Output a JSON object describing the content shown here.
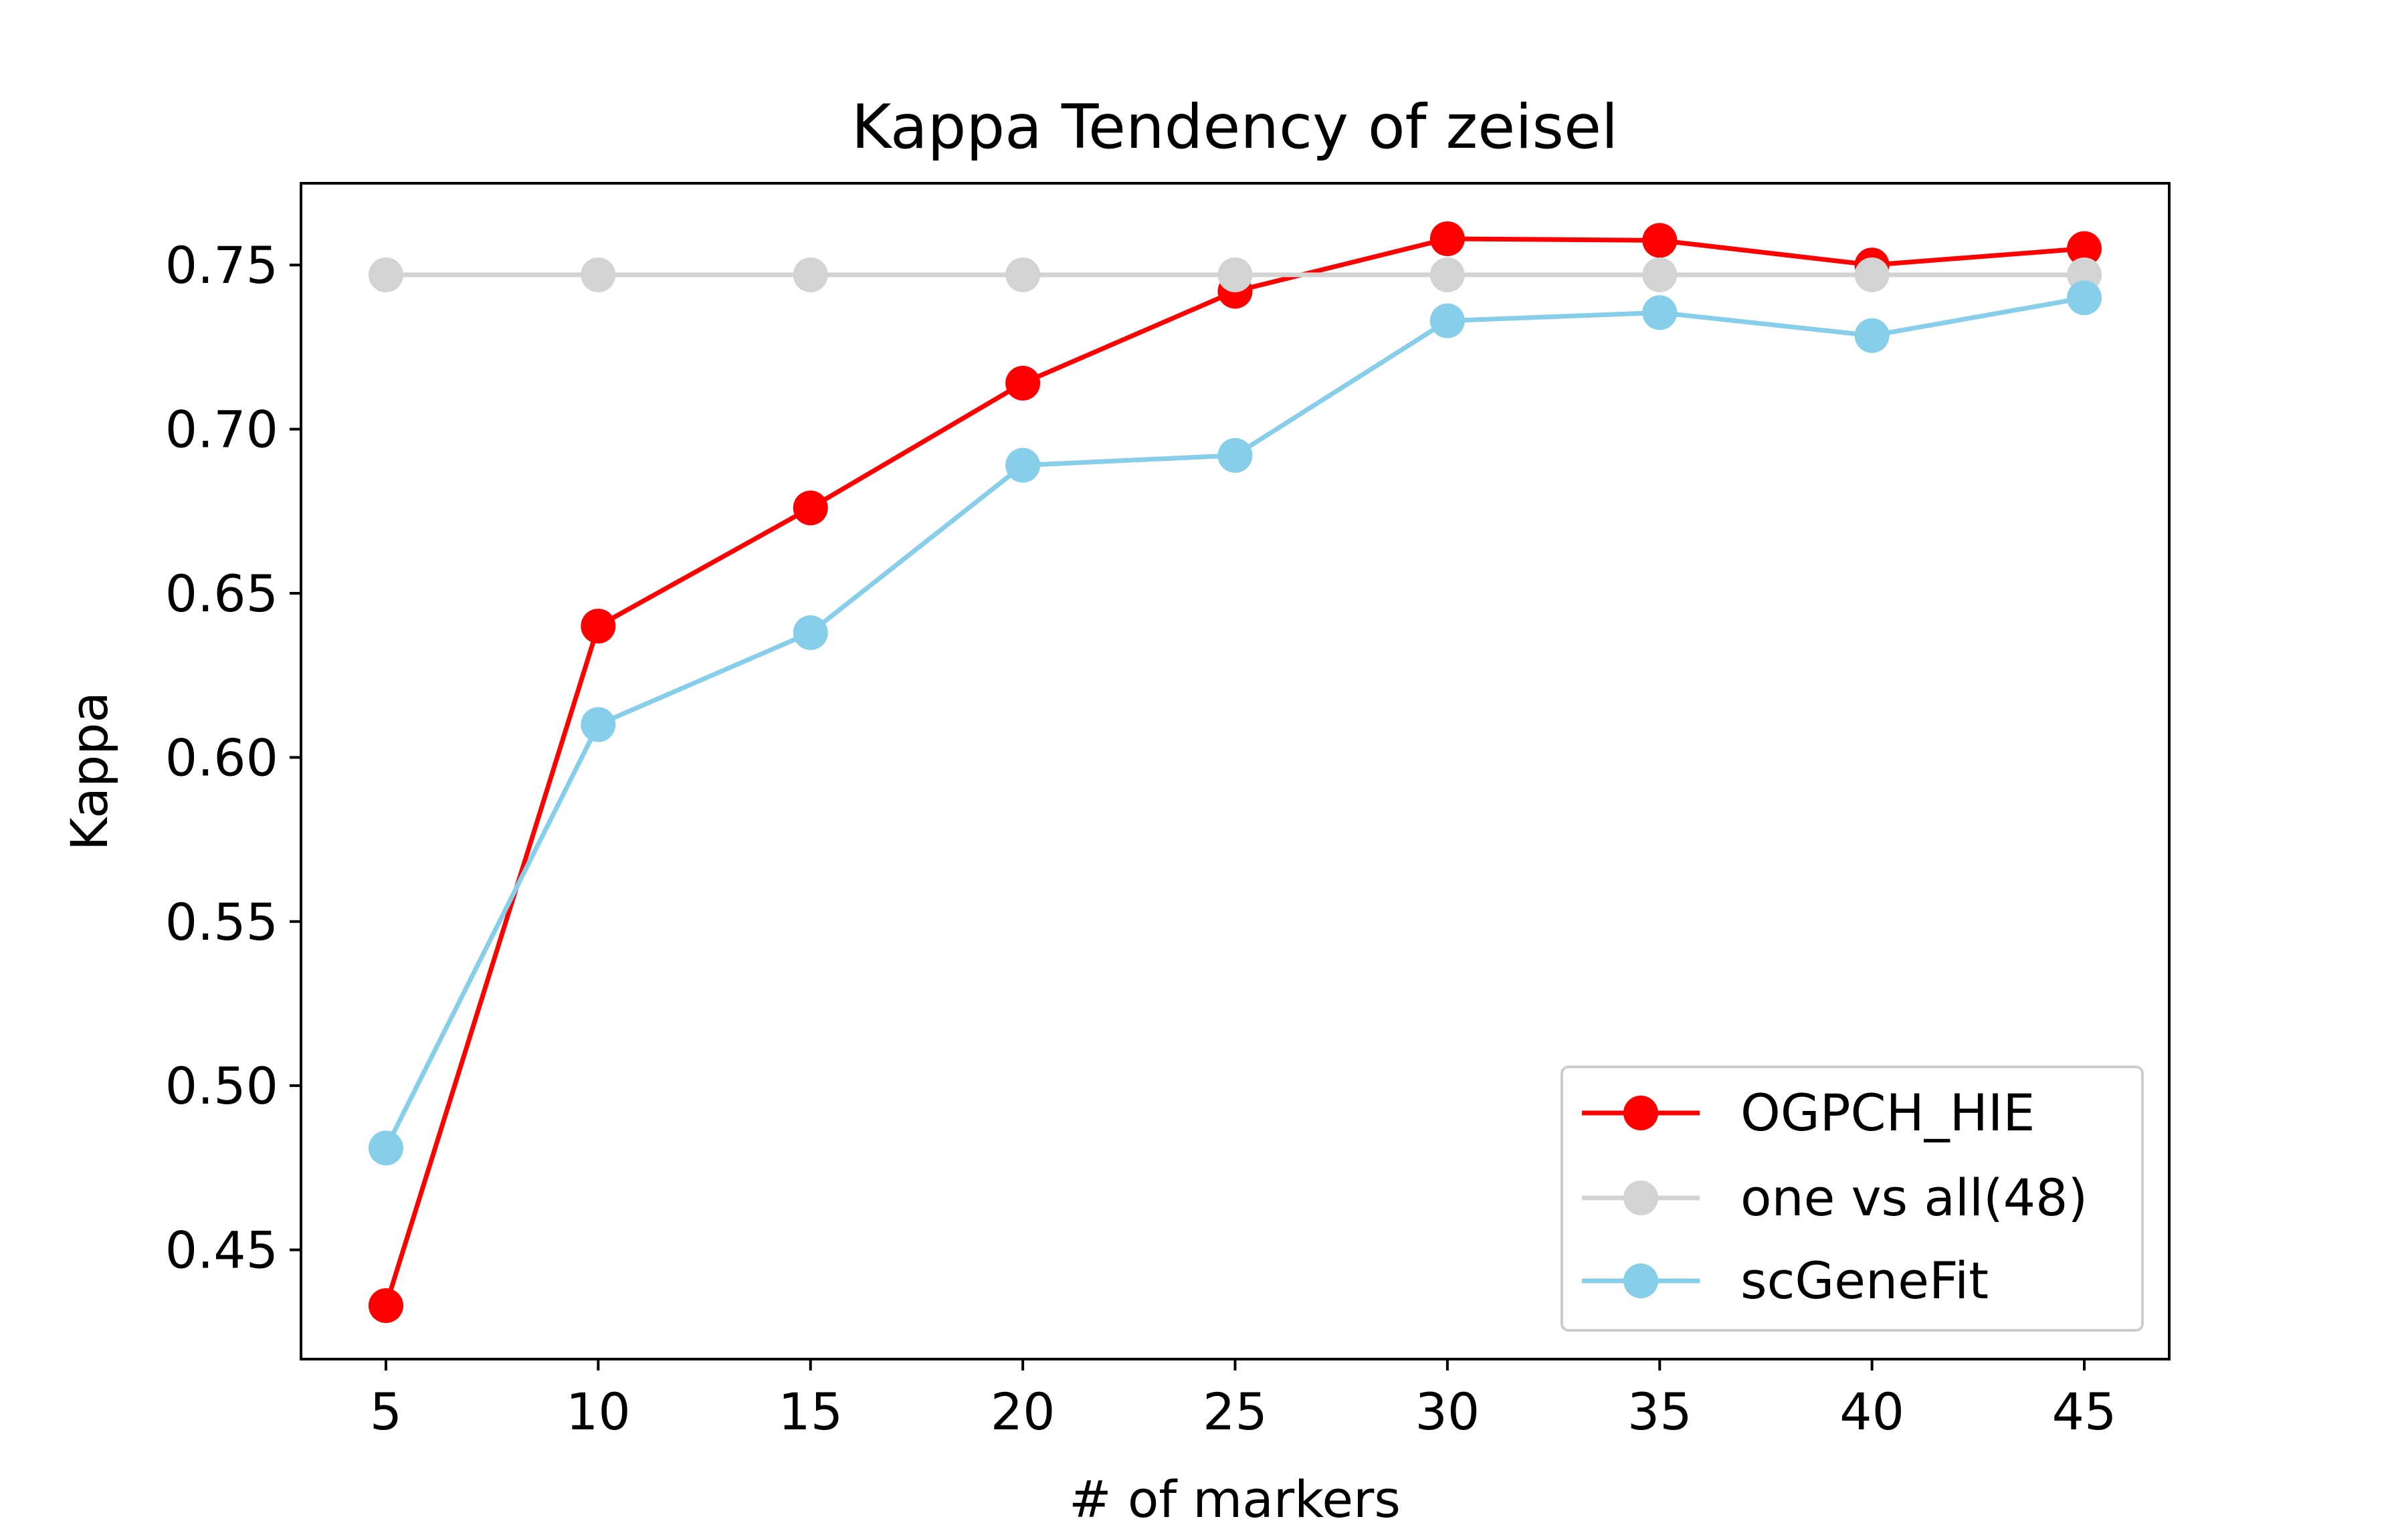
{
  "chart_data": {
    "type": "line",
    "title": "Kappa Tendency of zeisel",
    "xlabel": "# of markers",
    "ylabel": "Kappa",
    "x": [
      5,
      10,
      15,
      20,
      25,
      30,
      35,
      40,
      45
    ],
    "xlim": [
      3,
      47
    ],
    "ylim": [
      0.4167,
      0.7749
    ],
    "xticks": [
      "5",
      "10",
      "15",
      "20",
      "25",
      "30",
      "35",
      "40",
      "45"
    ],
    "yticks": [
      "0.45",
      "0.50",
      "0.55",
      "0.60",
      "0.65",
      "0.70",
      "0.75"
    ],
    "grid": false,
    "legend_position": "lower right",
    "series": [
      {
        "name": "OGPCH_HIE",
        "color": "#ff0000",
        "marker": "circle",
        "values": [
          0.433,
          0.64,
          0.676,
          0.714,
          0.742,
          0.758,
          0.7575,
          0.75,
          0.755
        ]
      },
      {
        "name": "one vs all(48)",
        "color": "#d3d3d3",
        "marker": "circle",
        "values": [
          0.747,
          0.747,
          0.747,
          0.747,
          0.747,
          0.747,
          0.747,
          0.747,
          0.747
        ]
      },
      {
        "name": "scGeneFit",
        "color": "#87ceeb",
        "marker": "circle",
        "values": [
          0.481,
          0.61,
          0.638,
          0.689,
          0.692,
          0.733,
          0.7355,
          0.7285,
          0.74
        ]
      }
    ]
  }
}
